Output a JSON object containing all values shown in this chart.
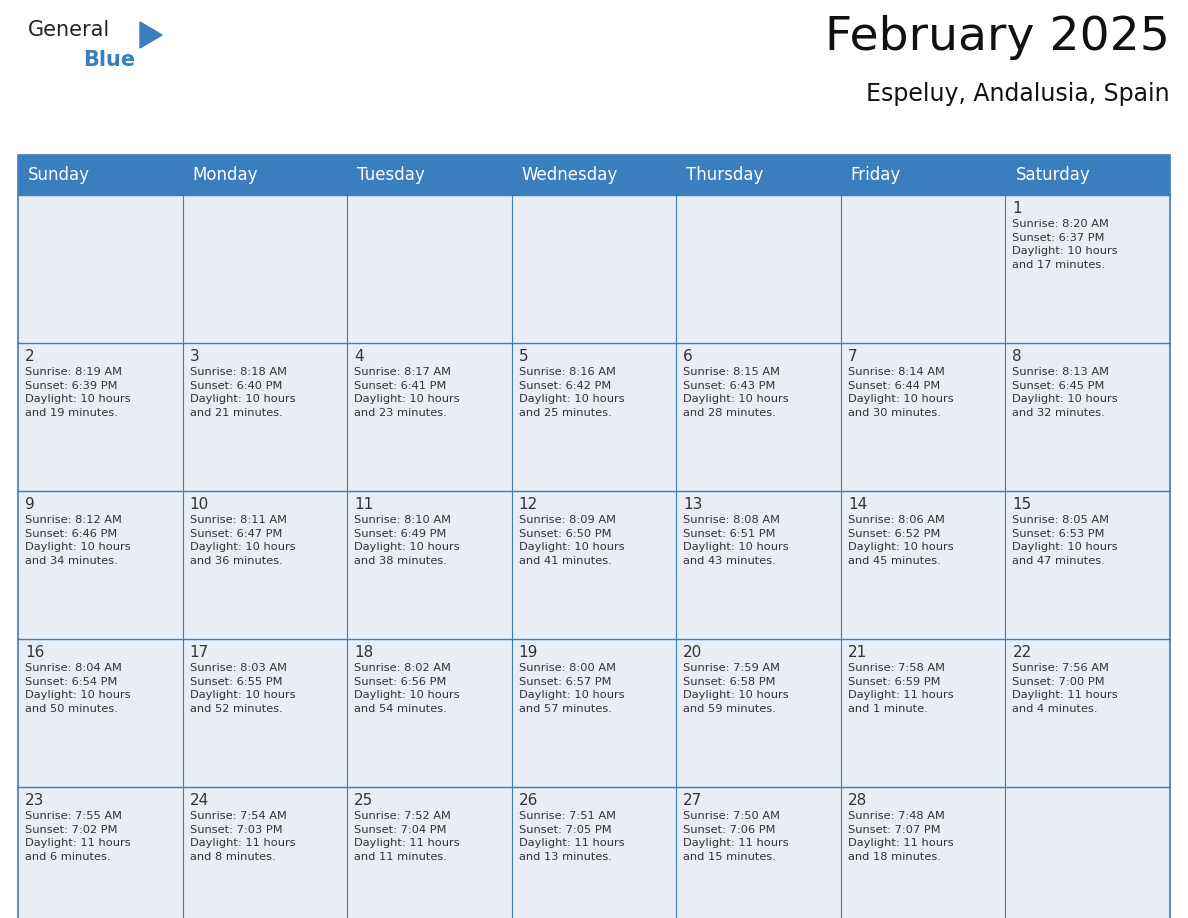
{
  "title": "February 2025",
  "subtitle": "Espeluy, Andalusia, Spain",
  "header_color": "#3a7ebf",
  "header_text_color": "#ffffff",
  "cell_bg_color": "#e8eef4",
  "border_color": "#3a7ebf",
  "day_number_color": "#333333",
  "text_color": "#333333",
  "days_of_week": [
    "Sunday",
    "Monday",
    "Tuesday",
    "Wednesday",
    "Thursday",
    "Friday",
    "Saturday"
  ],
  "weeks": [
    [
      {
        "day": "",
        "info": ""
      },
      {
        "day": "",
        "info": ""
      },
      {
        "day": "",
        "info": ""
      },
      {
        "day": "",
        "info": ""
      },
      {
        "day": "",
        "info": ""
      },
      {
        "day": "",
        "info": ""
      },
      {
        "day": "1",
        "info": "Sunrise: 8:20 AM\nSunset: 6:37 PM\nDaylight: 10 hours\nand 17 minutes."
      }
    ],
    [
      {
        "day": "2",
        "info": "Sunrise: 8:19 AM\nSunset: 6:39 PM\nDaylight: 10 hours\nand 19 minutes."
      },
      {
        "day": "3",
        "info": "Sunrise: 8:18 AM\nSunset: 6:40 PM\nDaylight: 10 hours\nand 21 minutes."
      },
      {
        "day": "4",
        "info": "Sunrise: 8:17 AM\nSunset: 6:41 PM\nDaylight: 10 hours\nand 23 minutes."
      },
      {
        "day": "5",
        "info": "Sunrise: 8:16 AM\nSunset: 6:42 PM\nDaylight: 10 hours\nand 25 minutes."
      },
      {
        "day": "6",
        "info": "Sunrise: 8:15 AM\nSunset: 6:43 PM\nDaylight: 10 hours\nand 28 minutes."
      },
      {
        "day": "7",
        "info": "Sunrise: 8:14 AM\nSunset: 6:44 PM\nDaylight: 10 hours\nand 30 minutes."
      },
      {
        "day": "8",
        "info": "Sunrise: 8:13 AM\nSunset: 6:45 PM\nDaylight: 10 hours\nand 32 minutes."
      }
    ],
    [
      {
        "day": "9",
        "info": "Sunrise: 8:12 AM\nSunset: 6:46 PM\nDaylight: 10 hours\nand 34 minutes."
      },
      {
        "day": "10",
        "info": "Sunrise: 8:11 AM\nSunset: 6:47 PM\nDaylight: 10 hours\nand 36 minutes."
      },
      {
        "day": "11",
        "info": "Sunrise: 8:10 AM\nSunset: 6:49 PM\nDaylight: 10 hours\nand 38 minutes."
      },
      {
        "day": "12",
        "info": "Sunrise: 8:09 AM\nSunset: 6:50 PM\nDaylight: 10 hours\nand 41 minutes."
      },
      {
        "day": "13",
        "info": "Sunrise: 8:08 AM\nSunset: 6:51 PM\nDaylight: 10 hours\nand 43 minutes."
      },
      {
        "day": "14",
        "info": "Sunrise: 8:06 AM\nSunset: 6:52 PM\nDaylight: 10 hours\nand 45 minutes."
      },
      {
        "day": "15",
        "info": "Sunrise: 8:05 AM\nSunset: 6:53 PM\nDaylight: 10 hours\nand 47 minutes."
      }
    ],
    [
      {
        "day": "16",
        "info": "Sunrise: 8:04 AM\nSunset: 6:54 PM\nDaylight: 10 hours\nand 50 minutes."
      },
      {
        "day": "17",
        "info": "Sunrise: 8:03 AM\nSunset: 6:55 PM\nDaylight: 10 hours\nand 52 minutes."
      },
      {
        "day": "18",
        "info": "Sunrise: 8:02 AM\nSunset: 6:56 PM\nDaylight: 10 hours\nand 54 minutes."
      },
      {
        "day": "19",
        "info": "Sunrise: 8:00 AM\nSunset: 6:57 PM\nDaylight: 10 hours\nand 57 minutes."
      },
      {
        "day": "20",
        "info": "Sunrise: 7:59 AM\nSunset: 6:58 PM\nDaylight: 10 hours\nand 59 minutes."
      },
      {
        "day": "21",
        "info": "Sunrise: 7:58 AM\nSunset: 6:59 PM\nDaylight: 11 hours\nand 1 minute."
      },
      {
        "day": "22",
        "info": "Sunrise: 7:56 AM\nSunset: 7:00 PM\nDaylight: 11 hours\nand 4 minutes."
      }
    ],
    [
      {
        "day": "23",
        "info": "Sunrise: 7:55 AM\nSunset: 7:02 PM\nDaylight: 11 hours\nand 6 minutes."
      },
      {
        "day": "24",
        "info": "Sunrise: 7:54 AM\nSunset: 7:03 PM\nDaylight: 11 hours\nand 8 minutes."
      },
      {
        "day": "25",
        "info": "Sunrise: 7:52 AM\nSunset: 7:04 PM\nDaylight: 11 hours\nand 11 minutes."
      },
      {
        "day": "26",
        "info": "Sunrise: 7:51 AM\nSunset: 7:05 PM\nDaylight: 11 hours\nand 13 minutes."
      },
      {
        "day": "27",
        "info": "Sunrise: 7:50 AM\nSunset: 7:06 PM\nDaylight: 11 hours\nand 15 minutes."
      },
      {
        "day": "28",
        "info": "Sunrise: 7:48 AM\nSunset: 7:07 PM\nDaylight: 11 hours\nand 18 minutes."
      },
      {
        "day": "",
        "info": ""
      }
    ]
  ],
  "logo_color_general": "#222222",
  "logo_color_blue": "#3a7ebf",
  "title_fontsize": 34,
  "subtitle_fontsize": 17,
  "header_fontsize": 12,
  "day_num_fontsize": 11,
  "info_fontsize": 8.2,
  "logo_fontsize": 15
}
